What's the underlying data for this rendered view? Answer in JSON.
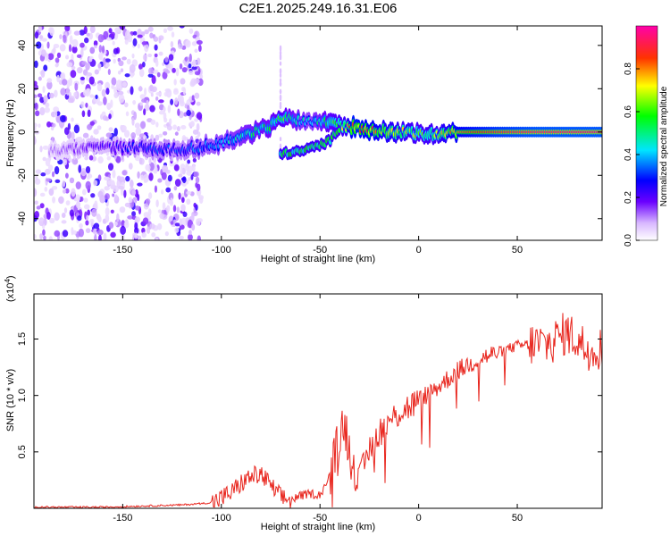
{
  "title": "C2E1.2025.249.16.31.E06",
  "spectrogram": {
    "xlabel": "Height of straight line (km)",
    "ylabel": "Frequency (Hz)",
    "x_ticks": [
      "-150",
      "-100",
      "-50",
      "0",
      "50"
    ],
    "y_ticks": [
      "40",
      "20",
      "0",
      "-20",
      "-40"
    ],
    "colorbar_label": "Normalized spectral amplitude",
    "colorbar_ticks": [
      "0.0",
      "0.2",
      "0.4",
      "0.6",
      "0.8"
    ]
  },
  "snr_plot": {
    "xlabel": "Height of straight line (km)",
    "ylabel": "SNR (10 * v/v)",
    "scale_base": "(x10",
    "scale_exp": "4",
    "scale_close": ")",
    "x_ticks": [
      "-150",
      "-100",
      "-50",
      "0",
      "50"
    ],
    "y_ticks": [
      "1.5",
      "1.0",
      "0.5"
    ],
    "line_color": "#e8241c"
  },
  "chart_data": [
    {
      "type": "heatmap",
      "title": "C2E1.2025.249.16.31.E06",
      "xlabel": "Height of straight line (km)",
      "ylabel": "Frequency (Hz)",
      "xlim": [
        -195,
        93
      ],
      "ylim": [
        -50,
        49
      ],
      "colorbar": {
        "label": "Normalized spectral amplitude",
        "range": [
          0,
          1
        ]
      },
      "ridge": {
        "x": [
          -190,
          -175,
          -165,
          -150,
          -140,
          -130,
          -120,
          -110,
          -100,
          -90,
          -80,
          -75,
          -72,
          -70,
          -65,
          -55,
          -45,
          -40,
          -37,
          -33,
          -25,
          -15,
          -5,
          0,
          10,
          20,
          40,
          60,
          80,
          92
        ],
        "y": [
          -9,
          -8,
          -7,
          -7,
          -7,
          -8,
          -8,
          -7,
          -5,
          -2,
          1,
          3,
          5,
          7,
          6,
          5,
          5,
          4,
          2,
          2,
          1,
          0,
          0,
          -1,
          -1,
          0,
          0,
          0,
          0,
          0
        ],
        "amplitude": [
          0.1,
          0.15,
          0.2,
          0.25,
          0.3,
          0.3,
          0.3,
          0.35,
          0.4,
          0.45,
          0.5,
          0.5,
          0.55,
          0.6,
          0.5,
          0.4,
          0.55,
          0.6,
          0.65,
          0.85,
          0.8,
          0.7,
          0.65,
          0.6,
          0.65,
          0.8,
          0.9,
          0.95,
          0.95,
          0.95
        ]
      },
      "secondary_ridge": {
        "x": [
          -70,
          -60,
          -50,
          -45,
          -40
        ],
        "y": [
          -10,
          -9,
          -6,
          -4,
          2
        ]
      }
    },
    {
      "type": "line",
      "xlabel": "Height of straight line (km)",
      "ylabel": "SNR (10 * v/v)",
      "y_scale": 10000,
      "xlim": [
        -195,
        93
      ],
      "ylim": [
        0,
        1.9
      ],
      "series": [
        {
          "name": "SNR",
          "color": "#e8241c",
          "x": [
            -195,
            -180,
            -160,
            -140,
            -120,
            -105,
            -100,
            -95,
            -90,
            -85,
            -80,
            -75,
            -70,
            -65,
            -60,
            -55,
            -50,
            -45,
            -40,
            -38,
            -35,
            -30,
            -25,
            -20,
            -15,
            -10,
            -5,
            0,
            5,
            10,
            20,
            30,
            40,
            50,
            55,
            60,
            65,
            70,
            75,
            80,
            85,
            90,
            93
          ],
          "values": [
            0.01,
            0.01,
            0.01,
            0.02,
            0.03,
            0.05,
            0.09,
            0.14,
            0.22,
            0.28,
            0.3,
            0.2,
            0.1,
            0.07,
            0.11,
            0.13,
            0.12,
            0.28,
            0.62,
            0.78,
            0.55,
            0.25,
            0.52,
            0.68,
            0.76,
            0.85,
            0.9,
            0.95,
            1.02,
            1.08,
            1.22,
            1.32,
            1.38,
            1.44,
            1.45,
            1.46,
            1.45,
            1.5,
            1.56,
            1.5,
            1.42,
            1.42,
            1.42
          ]
        }
      ]
    }
  ]
}
